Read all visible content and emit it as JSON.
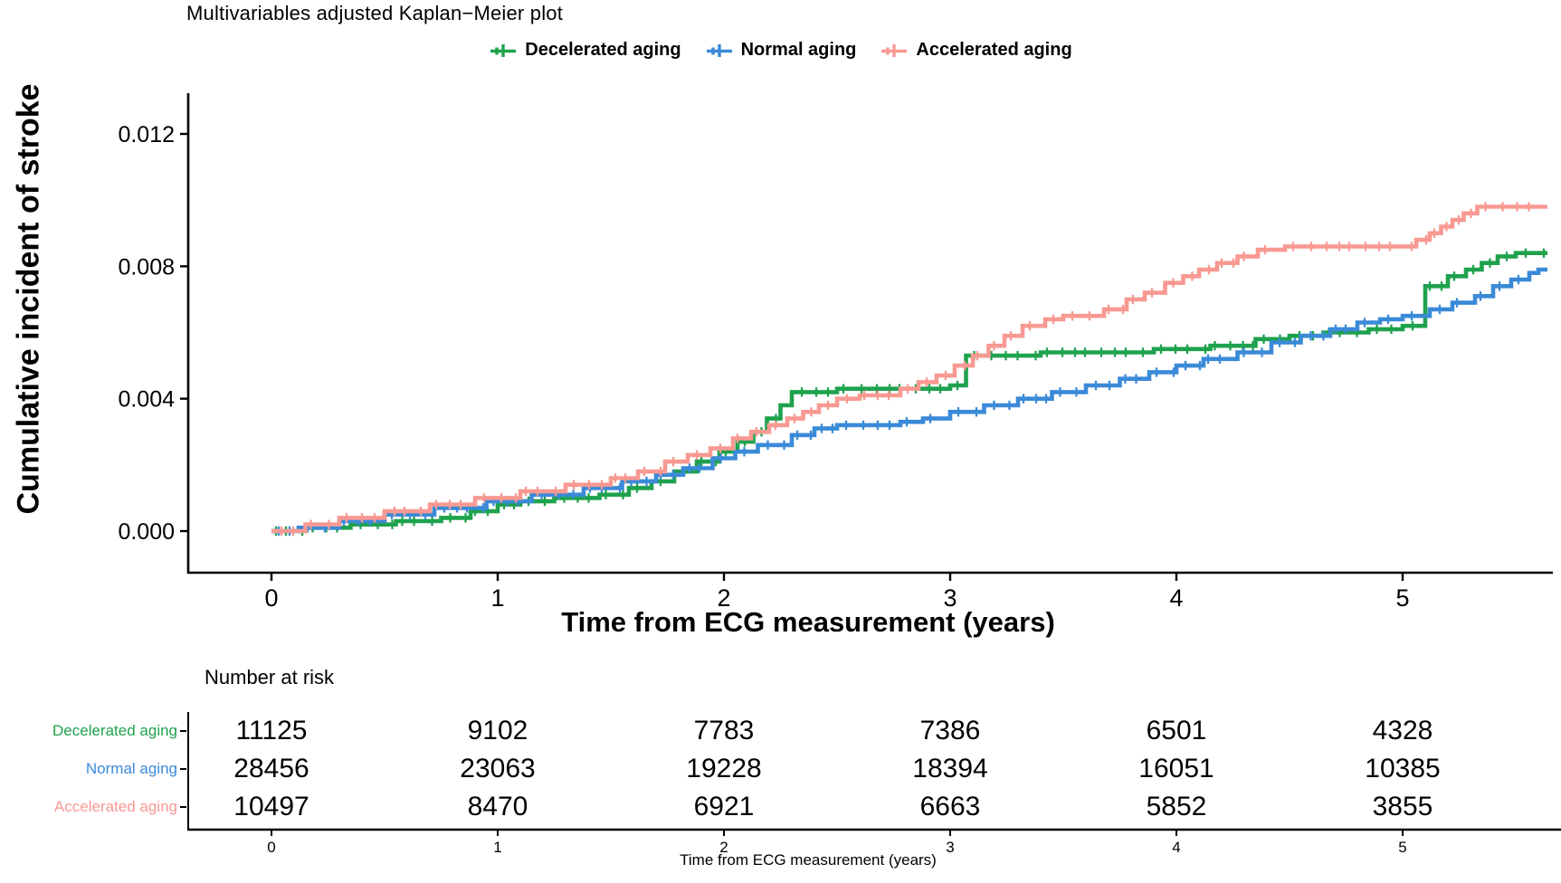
{
  "title": "Multivariables adjusted Kaplan−Meier plot",
  "colors": {
    "decelerated": "#1EA24D",
    "normal": "#3A8AD8",
    "accelerated": "#F89992",
    "axis": "#000000",
    "background": "#FFFFFF"
  },
  "legend": {
    "items": [
      {
        "label": "Decelerated aging",
        "color": "#1EA24D"
      },
      {
        "label": "Normal aging",
        "color": "#3A8AD8"
      },
      {
        "label": "Accelerated aging",
        "color": "#F89992"
      }
    ]
  },
  "axes": {
    "x_title": "Time from ECG measurement (years)",
    "y_title": "Cumulative incident of stroke"
  },
  "chart_data": {
    "type": "line",
    "subtype": "kaplan-meier-step",
    "title": "Multivariables adjusted Kaplan−Meier plot",
    "xlabel": "Time from ECG measurement (years)",
    "ylabel": "Cumulative incident of stroke",
    "xlim": [
      -0.37,
      5.66
    ],
    "ylim": [
      0,
      0.0126
    ],
    "x_ticks": [
      "0",
      "1",
      "2",
      "3",
      "4",
      "5"
    ],
    "y_ticks": [
      "0.000",
      "0.004",
      "0.008",
      "0.012"
    ],
    "grid": false,
    "legend_position": "top",
    "censor_marks": true,
    "series": [
      {
        "name": "Decelerated aging",
        "color": "#1EA24D",
        "points": [
          [
            0,
            0
          ],
          [
            0.15,
            0.0001
          ],
          [
            0.35,
            0.0002
          ],
          [
            0.55,
            0.0003
          ],
          [
            0.75,
            0.0004
          ],
          [
            0.88,
            0.0006
          ],
          [
            1.0,
            0.0008
          ],
          [
            1.1,
            0.0009
          ],
          [
            1.25,
            0.001
          ],
          [
            1.45,
            0.0011
          ],
          [
            1.58,
            0.0013
          ],
          [
            1.68,
            0.0015
          ],
          [
            1.78,
            0.0018
          ],
          [
            1.88,
            0.0021
          ],
          [
            1.98,
            0.0024
          ],
          [
            2.06,
            0.0027
          ],
          [
            2.13,
            0.003
          ],
          [
            2.19,
            0.0034
          ],
          [
            2.25,
            0.0038
          ],
          [
            2.3,
            0.0042
          ],
          [
            2.5,
            0.0043
          ],
          [
            3.0,
            0.0044
          ],
          [
            3.07,
            0.0053
          ],
          [
            3.4,
            0.0054
          ],
          [
            3.9,
            0.0055
          ],
          [
            4.15,
            0.0056
          ],
          [
            4.35,
            0.0058
          ],
          [
            4.5,
            0.0059
          ],
          [
            4.65,
            0.006
          ],
          [
            4.85,
            0.0061
          ],
          [
            5.0,
            0.0062
          ],
          [
            5.1,
            0.0074
          ],
          [
            5.2,
            0.0077
          ],
          [
            5.28,
            0.0079
          ],
          [
            5.35,
            0.0081
          ],
          [
            5.42,
            0.0083
          ],
          [
            5.5,
            0.0084
          ],
          [
            5.64,
            0.0084
          ]
        ]
      },
      {
        "name": "Normal aging",
        "color": "#3A8AD8",
        "points": [
          [
            0,
            0
          ],
          [
            0.12,
            0.0001
          ],
          [
            0.3,
            0.0003
          ],
          [
            0.5,
            0.0005
          ],
          [
            0.72,
            0.0007
          ],
          [
            0.95,
            0.0009
          ],
          [
            1.15,
            0.0011
          ],
          [
            1.38,
            0.0013
          ],
          [
            1.55,
            0.0015
          ],
          [
            1.7,
            0.0017
          ],
          [
            1.82,
            0.0019
          ],
          [
            1.95,
            0.0022
          ],
          [
            2.05,
            0.0024
          ],
          [
            2.15,
            0.0026
          ],
          [
            2.3,
            0.0029
          ],
          [
            2.4,
            0.0031
          ],
          [
            2.5,
            0.0032
          ],
          [
            2.78,
            0.0033
          ],
          [
            2.88,
            0.0034
          ],
          [
            3.0,
            0.0036
          ],
          [
            3.15,
            0.0038
          ],
          [
            3.3,
            0.004
          ],
          [
            3.45,
            0.0042
          ],
          [
            3.6,
            0.0044
          ],
          [
            3.75,
            0.0046
          ],
          [
            3.88,
            0.0048
          ],
          [
            4.0,
            0.005
          ],
          [
            4.12,
            0.0052
          ],
          [
            4.27,
            0.0054
          ],
          [
            4.42,
            0.0057
          ],
          [
            4.55,
            0.0059
          ],
          [
            4.68,
            0.0061
          ],
          [
            4.8,
            0.0063
          ],
          [
            4.9,
            0.0064
          ],
          [
            5.0,
            0.0065
          ],
          [
            5.12,
            0.0067
          ],
          [
            5.22,
            0.0069
          ],
          [
            5.32,
            0.0071
          ],
          [
            5.4,
            0.0074
          ],
          [
            5.48,
            0.0076
          ],
          [
            5.56,
            0.0078
          ],
          [
            5.6,
            0.0079
          ],
          [
            5.64,
            0.0079
          ]
        ]
      },
      {
        "name": "Accelerated aging",
        "color": "#F89992",
        "points": [
          [
            0,
            0
          ],
          [
            0.15,
            0.0002
          ],
          [
            0.3,
            0.0004
          ],
          [
            0.5,
            0.0006
          ],
          [
            0.7,
            0.0008
          ],
          [
            0.9,
            0.001
          ],
          [
            1.1,
            0.0012
          ],
          [
            1.3,
            0.0014
          ],
          [
            1.5,
            0.0016
          ],
          [
            1.62,
            0.0018
          ],
          [
            1.74,
            0.0021
          ],
          [
            1.84,
            0.0023
          ],
          [
            1.94,
            0.0025
          ],
          [
            2.04,
            0.0028
          ],
          [
            2.12,
            0.003
          ],
          [
            2.2,
            0.0032
          ],
          [
            2.28,
            0.0034
          ],
          [
            2.35,
            0.0036
          ],
          [
            2.42,
            0.0038
          ],
          [
            2.5,
            0.004
          ],
          [
            2.6,
            0.0041
          ],
          [
            2.78,
            0.0043
          ],
          [
            2.86,
            0.0045
          ],
          [
            2.94,
            0.0047
          ],
          [
            3.02,
            0.005
          ],
          [
            3.1,
            0.0053
          ],
          [
            3.17,
            0.0056
          ],
          [
            3.24,
            0.0059
          ],
          [
            3.32,
            0.0062
          ],
          [
            3.42,
            0.0064
          ],
          [
            3.5,
            0.0065
          ],
          [
            3.68,
            0.0067
          ],
          [
            3.78,
            0.007
          ],
          [
            3.86,
            0.0072
          ],
          [
            3.95,
            0.0075
          ],
          [
            4.03,
            0.0077
          ],
          [
            4.1,
            0.0079
          ],
          [
            4.18,
            0.0081
          ],
          [
            4.27,
            0.0083
          ],
          [
            4.36,
            0.0085
          ],
          [
            4.48,
            0.0086
          ],
          [
            5.0,
            0.0086
          ],
          [
            5.06,
            0.0088
          ],
          [
            5.12,
            0.009
          ],
          [
            5.17,
            0.0092
          ],
          [
            5.22,
            0.0094
          ],
          [
            5.27,
            0.0096
          ],
          [
            5.33,
            0.0098
          ],
          [
            5.64,
            0.0098
          ]
        ]
      }
    ]
  },
  "risk_table": {
    "header": "Number at risk",
    "axis_label": "Time from ECG measurement (years)",
    "x_ticks": [
      "0",
      "1",
      "2",
      "3",
      "4",
      "5"
    ],
    "rows": [
      {
        "label": "Decelerated aging",
        "color": "#1EA24D",
        "counts": [
          "11125",
          "9102",
          "7783",
          "7386",
          "6501",
          "4328"
        ]
      },
      {
        "label": "Normal aging",
        "color": "#3A8AD8",
        "counts": [
          "28456",
          "23063",
          "19228",
          "18394",
          "16051",
          "10385"
        ]
      },
      {
        "label": "Accelerated aging",
        "color": "#F89992",
        "counts": [
          "10497",
          "8470",
          "6921",
          "6663",
          "5852",
          "3855"
        ]
      }
    ]
  }
}
